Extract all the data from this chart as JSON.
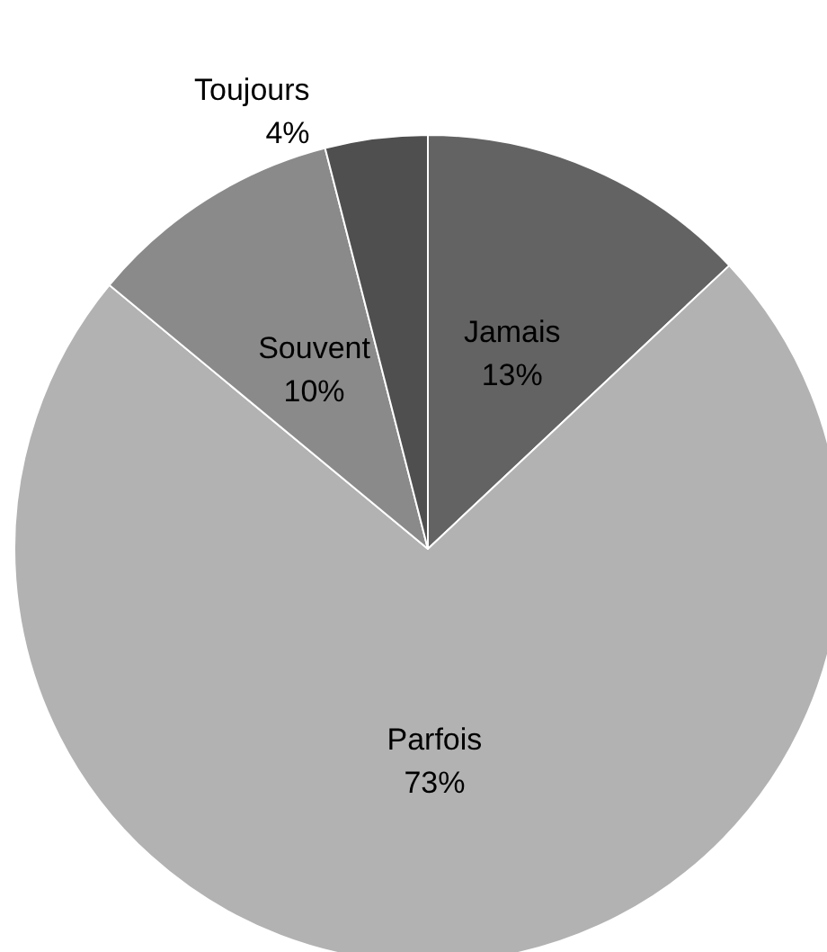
{
  "chart_data": {
    "type": "pie",
    "categories": [
      "Jamais",
      "Parfois",
      "Souvent",
      "Toujours"
    ],
    "values": [
      13,
      73,
      10,
      4
    ],
    "value_labels": [
      "13%",
      "73%",
      "10%",
      "4%"
    ],
    "colors": [
      "#636363",
      "#b2b2b2",
      "#8a8a8a",
      "#4f4f4f"
    ],
    "legend": false
  }
}
